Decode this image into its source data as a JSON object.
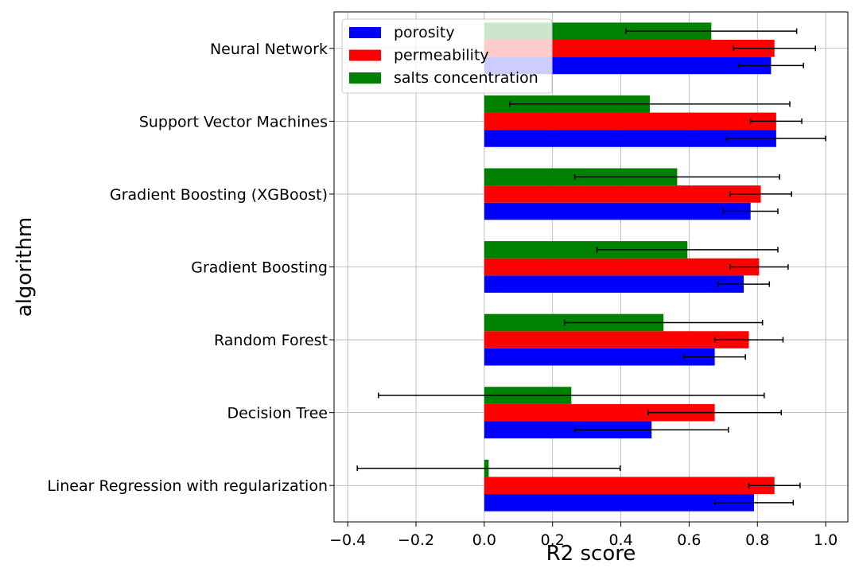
{
  "chart_data": {
    "type": "bar",
    "orientation": "horizontal",
    "xlabel": "R2 score",
    "ylabel": "algorithm",
    "xlim": [
      -0.44,
      1.065
    ],
    "xticks": [
      -0.4,
      -0.2,
      0.0,
      0.2,
      0.4,
      0.6,
      0.8,
      1.0
    ],
    "xtick_labels": [
      "−0.4",
      "−0.2",
      "0.0",
      "0.2",
      "0.4",
      "0.6",
      "0.8",
      "1.0"
    ],
    "grid": true,
    "legend_position": "top-left",
    "categories": [
      "Linear Regression with regularization",
      "Decision Tree",
      "Random Forest",
      "Gradient Boosting",
      "Gradient Boosting (XGBoost)",
      "Support Vector Machines",
      "Neural Network"
    ],
    "series": [
      {
        "name": "porosity",
        "color": "#0000ff",
        "values": [
          0.79,
          0.49,
          0.675,
          0.76,
          0.78,
          0.855,
          0.84
        ],
        "errors": [
          0.115,
          0.225,
          0.09,
          0.075,
          0.08,
          0.145,
          0.095
        ]
      },
      {
        "name": "permeability",
        "color": "#ff0000",
        "values": [
          0.85,
          0.675,
          0.775,
          0.805,
          0.81,
          0.855,
          0.85
        ],
        "errors": [
          0.075,
          0.195,
          0.1,
          0.085,
          0.09,
          0.075,
          0.12
        ]
      },
      {
        "name": "salts concentration",
        "color": "#008000",
        "values": [
          0.013,
          0.255,
          0.525,
          0.595,
          0.565,
          0.485,
          0.665
        ],
        "errors": [
          0.385,
          0.565,
          0.29,
          0.265,
          0.3,
          0.41,
          0.25
        ]
      }
    ]
  }
}
